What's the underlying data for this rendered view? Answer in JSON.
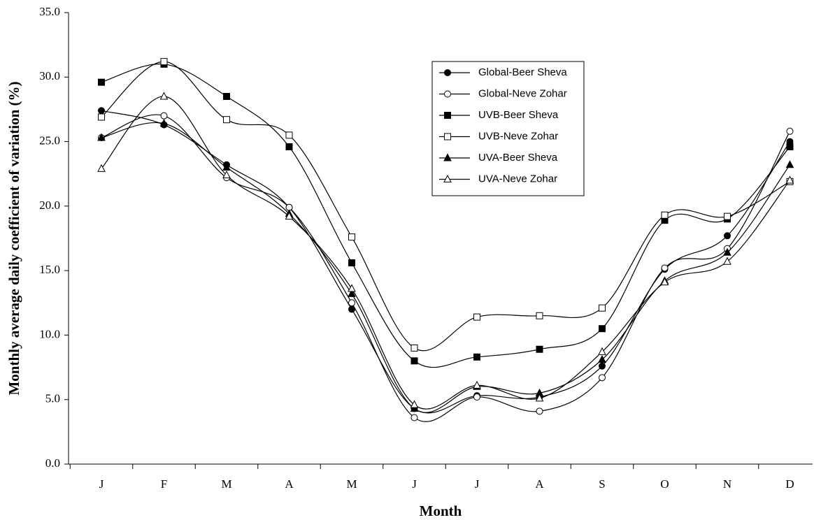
{
  "chart_data": {
    "type": "line",
    "xlabel": "Month",
    "ylabel": "Monthly average daily coefficient of variation (%)",
    "categories": [
      "J",
      "F",
      "M",
      "A",
      "M",
      "J",
      "J",
      "A",
      "S",
      "O",
      "N",
      "D"
    ],
    "ylim": [
      0,
      35
    ],
    "yticks": [
      {
        "value": 0,
        "label": "0.0"
      },
      {
        "value": 5,
        "label": "5.0"
      },
      {
        "value": 10,
        "label": "10.0"
      },
      {
        "value": 15,
        "label": "15.0"
      },
      {
        "value": 20,
        "label": "20.0"
      },
      {
        "value": 25,
        "label": "25.0"
      },
      {
        "value": 30,
        "label": "30.0"
      },
      {
        "value": 35,
        "label": "35.0"
      }
    ],
    "grid": false,
    "smooth": true,
    "legend": "upper-center",
    "series": [
      {
        "name": "Global-Beer Sheva",
        "color": "#000000",
        "marker": "circle",
        "filled": true,
        "values": [
          27.4,
          26.3,
          23.2,
          19.9,
          12.0,
          4.3,
          5.3,
          5.2,
          7.6,
          15.1,
          17.7,
          25.0
        ]
      },
      {
        "name": "Global-Neve Zohar",
        "color": "#000000",
        "marker": "circle",
        "filled": false,
        "values": [
          25.3,
          27.0,
          22.2,
          19.9,
          12.5,
          3.6,
          5.2,
          4.1,
          6.7,
          15.2,
          16.7,
          25.8
        ]
      },
      {
        "name": "UVB-Beer Sheva",
        "color": "#000000",
        "marker": "square",
        "filled": true,
        "values": [
          29.6,
          31.0,
          28.5,
          24.6,
          15.6,
          8.0,
          8.3,
          8.9,
          10.5,
          18.9,
          19.0,
          24.6
        ]
      },
      {
        "name": "UVB-Neve Zohar",
        "color": "#000000",
        "marker": "square",
        "filled": false,
        "values": [
          26.9,
          31.2,
          26.7,
          25.5,
          17.6,
          9.0,
          11.4,
          11.5,
          12.1,
          19.3,
          19.2,
          21.9
        ]
      },
      {
        "name": "UVA-Beer Sheva",
        "color": "#000000",
        "marker": "triangle",
        "filled": true,
        "values": [
          25.3,
          26.4,
          23.0,
          19.4,
          13.2,
          4.3,
          6.0,
          5.5,
          8.1,
          14.2,
          16.4,
          23.2
        ]
      },
      {
        "name": "UVA-Neve Zohar",
        "color": "#000000",
        "marker": "triangle",
        "filled": false,
        "values": [
          22.9,
          28.5,
          22.4,
          19.2,
          13.6,
          4.6,
          6.1,
          5.1,
          8.7,
          14.1,
          15.7,
          22.0
        ]
      }
    ]
  }
}
